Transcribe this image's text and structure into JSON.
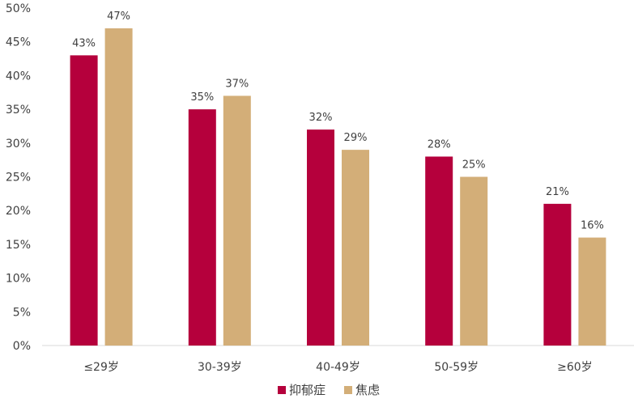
{
  "chart_data": {
    "type": "bar",
    "categories": [
      "≤29岁",
      "30-39岁",
      "40-49岁",
      "50-59岁",
      "≥60岁"
    ],
    "series": [
      {
        "name": "抑郁症",
        "color": "#B5003C",
        "values": [
          43,
          35,
          32,
          28,
          21
        ],
        "labels": [
          "43%",
          "35%",
          "32%",
          "28%",
          "21%"
        ]
      },
      {
        "name": "焦虑",
        "color": "#D3AE78",
        "values": [
          47,
          37,
          29,
          25,
          16
        ],
        "labels": [
          "47%",
          "37%",
          "29%",
          "25%",
          "16%"
        ]
      }
    ],
    "title": "",
    "xlabel": "",
    "ylabel": "",
    "ylim": [
      0,
      50
    ],
    "yticks": [
      0,
      5,
      10,
      15,
      20,
      25,
      30,
      35,
      40,
      45,
      50
    ],
    "ytick_labels": [
      "0%",
      "5%",
      "10%",
      "15%",
      "20%",
      "25%",
      "30%",
      "35%",
      "40%",
      "45%",
      "50%"
    ],
    "grid": false,
    "legend_position": "bottom-center"
  }
}
